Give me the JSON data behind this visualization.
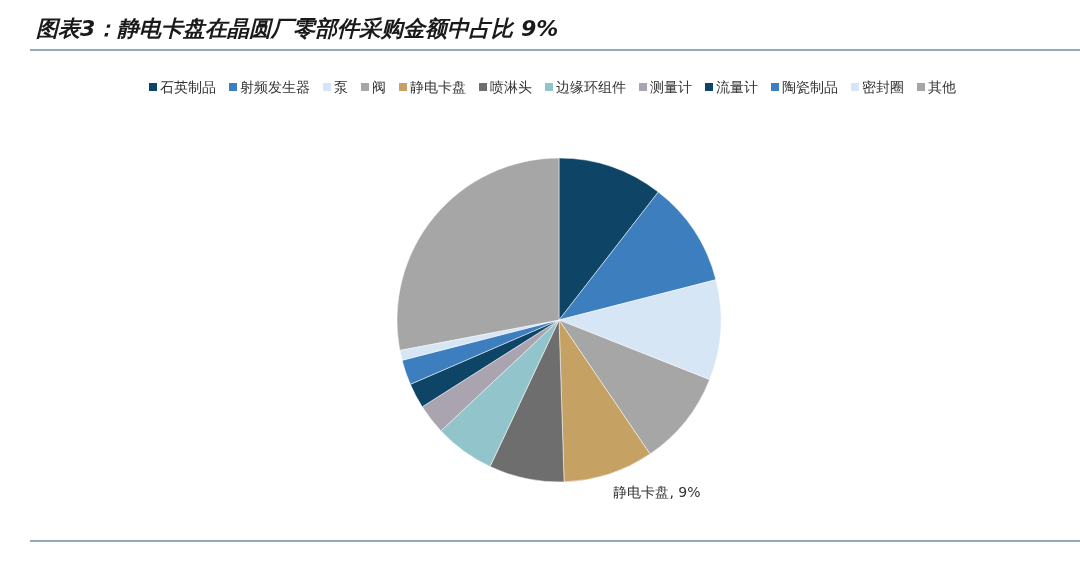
{
  "chart_data": {
    "type": "pie",
    "title": "图表3：静电卡盘在晶圆厂零部件采购金额中占比 9%",
    "categories": [
      "石英制品",
      "射频发生器",
      "泵",
      "阀",
      "静电卡盘",
      "喷淋头",
      "边缘环组件",
      "测量计",
      "流量计",
      "陶瓷制品",
      "密封圈",
      "其他"
    ],
    "values": [
      10.5,
      10.5,
      10,
      9.5,
      9,
      7.5,
      6,
      3,
      2.5,
      2.5,
      1,
      28
    ],
    "colors": [
      "#0e4466",
      "#3d7fbe",
      "#d6e6f4",
      "#a6a6a6",
      "#c5a163",
      "#6e6e6e",
      "#92c5cb",
      "#a9a4b0",
      "#0e4466",
      "#3d7fbe",
      "#d6e6f4",
      "#a6a6a6"
    ],
    "value_labels": [
      null,
      null,
      null,
      null,
      "静电卡盘, 9%",
      null,
      null,
      null,
      null,
      null,
      null,
      null
    ],
    "legend": "top"
  }
}
